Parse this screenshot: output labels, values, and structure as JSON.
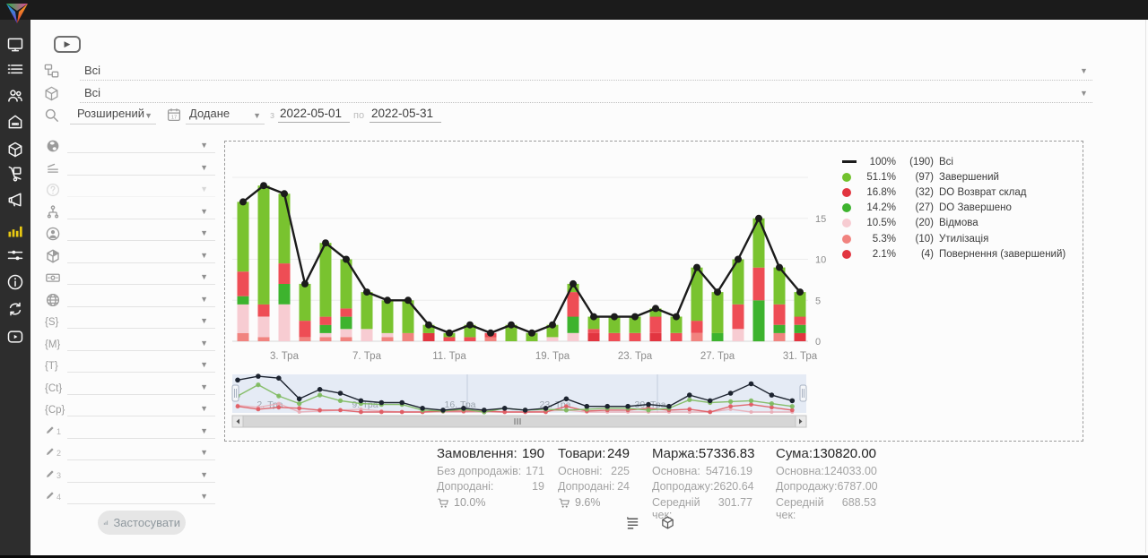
{
  "topbar": {
    "icons": [
      {
        "name": "user-account-icon"
      },
      {
        "name": "notifications-bell-icon"
      },
      {
        "name": "support-headset-icon"
      }
    ]
  },
  "sidebar": {
    "active_color": "#e9c912",
    "items": [
      {
        "name": "monitor",
        "active": false
      },
      {
        "name": "orders",
        "active": false
      },
      {
        "name": "clients",
        "active": false
      },
      {
        "name": "store",
        "active": false
      },
      {
        "name": "products",
        "active": false
      },
      {
        "name": "logistics",
        "active": false
      },
      {
        "name": "marketing",
        "active": false
      },
      {
        "name": "statistics",
        "active": true
      },
      {
        "name": "settings",
        "active": false
      },
      {
        "name": "info",
        "active": false
      },
      {
        "name": "sync",
        "active": false
      },
      {
        "name": "video",
        "active": false
      }
    ]
  },
  "filters": {
    "category_value": "Всі",
    "product_value": "Всі",
    "search_mode": "Розширений",
    "date_field": "Додане",
    "from_label": "з",
    "date_from": "2022-05-01",
    "to_label": "по",
    "date_to": "2022-05-31",
    "apply_label": "Застосувати",
    "rows": [
      {
        "icon": "world-icon"
      },
      {
        "icon": "levels-icon"
      },
      {
        "icon": "help-icon",
        "disabled": true
      },
      {
        "icon": "org-structure-icon"
      },
      {
        "icon": "manager-icon"
      },
      {
        "icon": "product-cube-icon"
      },
      {
        "icon": "payment-icon"
      },
      {
        "icon": "website-icon"
      },
      {
        "icon": "status-s-icon",
        "text": "{S}"
      },
      {
        "icon": "status-m-icon",
        "text": "{M}"
      },
      {
        "icon": "status-t-icon",
        "text": "{T}"
      },
      {
        "icon": "status-ct-icon",
        "text": "{Ct}"
      },
      {
        "icon": "status-cp-icon",
        "text": "{Cp}"
      },
      {
        "icon": "custom-field-1-icon",
        "pencil": true,
        "num": "1"
      },
      {
        "icon": "custom-field-2-icon",
        "pencil": true,
        "num": "2"
      },
      {
        "icon": "custom-field-3-icon",
        "pencil": true,
        "num": "3"
      },
      {
        "icon": "custom-field-4-icon",
        "pencil": true,
        "num": "4"
      }
    ]
  },
  "chart_data": {
    "type": "bar",
    "subtype": "stacked-bars-with-total-line",
    "n_categories": 28,
    "x_tick_labels": [
      {
        "index": 2,
        "label": "3. Тра"
      },
      {
        "index": 6,
        "label": "7. Тра"
      },
      {
        "index": 10,
        "label": "11. Тра"
      },
      {
        "index": 15,
        "label": "19. Тра"
      },
      {
        "index": 19,
        "label": "23. Тра"
      },
      {
        "index": 23,
        "label": "27. Тра"
      },
      {
        "index": 27,
        "label": "31. Тра"
      }
    ],
    "ylim": [
      0,
      20
    ],
    "yticks": [
      0,
      5,
      10,
      15
    ],
    "grid": true,
    "legend_position": "right",
    "line_series": {
      "name": "Всі",
      "color": "#1b1b1b",
      "values": [
        17,
        19,
        18,
        7,
        12,
        10,
        6,
        5,
        5,
        2,
        1,
        2,
        1,
        2,
        1,
        2,
        7,
        3,
        3,
        3,
        4,
        3,
        9,
        6,
        10,
        15,
        9,
        6
      ]
    },
    "stack_series": [
      {
        "name": "Утилізація",
        "color": "#f1837f",
        "values": [
          1,
          0.5,
          0,
          0.5,
          0.5,
          0.5,
          0,
          0.5,
          1,
          0,
          0,
          0,
          0.5,
          0,
          0,
          0,
          0,
          0,
          0,
          0,
          0,
          0,
          1,
          0,
          0,
          0,
          1,
          0
        ]
      },
      {
        "name": "Відмова",
        "color": "#f7ccd2",
        "values": [
          3.5,
          2.5,
          4.5,
          0,
          0.5,
          1,
          1.5,
          0.5,
          0,
          0,
          0,
          0,
          0,
          0,
          0,
          0.5,
          1,
          0,
          0,
          0,
          0,
          0,
          0,
          0,
          1.5,
          0,
          0,
          0
        ]
      },
      {
        "name": "Повернення (завершений)",
        "color": "#e23540",
        "values": [
          0,
          0,
          0,
          0,
          0,
          0,
          0,
          0,
          0,
          1,
          0,
          0,
          0,
          0,
          0,
          0,
          0,
          1,
          0,
          0,
          1,
          0,
          0,
          0,
          0,
          0,
          0,
          1
        ]
      },
      {
        "name": "DO Завершено",
        "color": "#3db32e",
        "values": [
          1,
          0,
          2.5,
          0,
          1,
          1.5,
          0,
          0,
          0,
          0,
          0,
          0,
          0,
          0,
          0,
          0,
          2,
          0,
          0,
          0,
          0,
          0,
          0,
          1,
          0,
          5,
          1,
          1
        ]
      },
      {
        "name": "DO Возврат склад",
        "color": "#ee4d55",
        "values": [
          3,
          1.5,
          2.5,
          2,
          1,
          1,
          0,
          0,
          0,
          0,
          0.5,
          0.5,
          0.5,
          0,
          0,
          0,
          3,
          0.5,
          1,
          1,
          2,
          1,
          1.5,
          0,
          3,
          4,
          2.5,
          1
        ]
      },
      {
        "name": "Завершений",
        "color": "#79c32f",
        "values": [
          8.5,
          14.5,
          8.5,
          4.5,
          9,
          6,
          4.5,
          4,
          4,
          1,
          0.5,
          1.5,
          0,
          2,
          1,
          1.5,
          1,
          1.5,
          2,
          2,
          1,
          2,
          6.5,
          5,
          5.5,
          6,
          4.5,
          3
        ]
      }
    ],
    "legend": [
      {
        "swatch": "line",
        "color": "#1b1b1b",
        "pct": "100%",
        "count": "(190)",
        "label": "Всі"
      },
      {
        "swatch": "dot",
        "color": "#72c22d",
        "pct": "51.1%",
        "count": "(97)",
        "label": "Завершений"
      },
      {
        "swatch": "dot",
        "color": "#e2353f",
        "pct": "16.8%",
        "count": "(32)",
        "label": "DO Возврат склад"
      },
      {
        "swatch": "dot",
        "color": "#3db32e",
        "pct": "14.2%",
        "count": "(27)",
        "label": "DO Завершено"
      },
      {
        "swatch": "dot",
        "color": "#f7ccd2",
        "pct": "10.5%",
        "count": "(20)",
        "label": "Відмова"
      },
      {
        "swatch": "dot",
        "color": "#f1837f",
        "pct": "5.3%",
        "count": "(10)",
        "label": "Утилізація"
      },
      {
        "swatch": "dot",
        "color": "#e23540",
        "pct": "2.1%",
        "count": "(4)",
        "label": "Повернення (завершений)"
      }
    ],
    "navigator_labels": [
      "2. Тра",
      "9. Тра",
      "16. Тра",
      "23. Тра",
      "30. Тра"
    ]
  },
  "stats": [
    {
      "title": "Замовлення:",
      "value": "190",
      "rows": [
        {
          "label": "Без допродажів:",
          "value": "171"
        },
        {
          "label": "Допродані:",
          "value": "19"
        }
      ],
      "cart_pct": "10.0%"
    },
    {
      "title": "Товари:",
      "value": "249",
      "rows": [
        {
          "label": "Основні:",
          "value": "225"
        },
        {
          "label": "Допродані:",
          "value": "24"
        }
      ],
      "cart_pct": "9.6%"
    },
    {
      "title": "Маржа:",
      "value": "57336.83",
      "rows": [
        {
          "label": "Основна:",
          "value": "54716.19"
        },
        {
          "label": "Допродажу:",
          "value": "2620.64"
        },
        {
          "label": "Середній чек:",
          "value": "301.77"
        }
      ]
    },
    {
      "title": "Сума:",
      "value": "130820.00",
      "rows": [
        {
          "label": "Основна:",
          "value": "124033.00"
        },
        {
          "label": "Допродажу:",
          "value": "6787.00"
        },
        {
          "label": "Середній чек:",
          "value": "688.53"
        }
      ]
    }
  ],
  "view_toggles": [
    {
      "name": "list-view-icon"
    },
    {
      "name": "product-view-icon"
    }
  ]
}
